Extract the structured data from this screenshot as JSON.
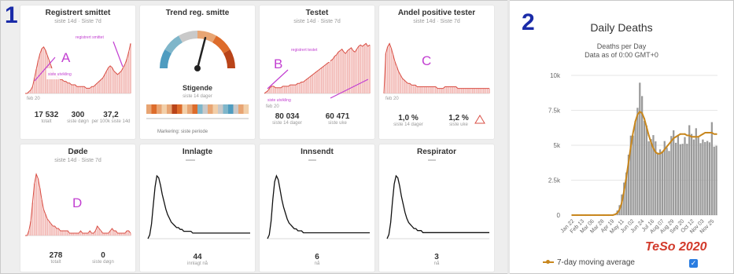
{
  "panels": {
    "one_label": "1",
    "two_label": "2"
  },
  "dashboard": {
    "cards": [
      {
        "title": "Registrert smittet",
        "subtitle": "siste 14d · Siste 7d",
        "letter": "A",
        "annotations": [
          "registrert smittet",
          "siste utvikling"
        ],
        "x_tick_left": "feb 20",
        "x_tick_right": "",
        "stats": [
          {
            "value": "17 532",
            "label": "totalt"
          },
          {
            "value": "300",
            "label": "siste døgn"
          },
          {
            "value": "37,2",
            "label": "per 100k siste 14d"
          }
        ]
      },
      {
        "title": "Trend reg. smitte",
        "gauge_label": "Stigende",
        "gauge_sub": "siste 14 dager",
        "note": "Markering: siste periode"
      },
      {
        "title": "Testet",
        "subtitle": "siste 14d · Siste 7d",
        "letter": "B",
        "annotations": [
          "registrert testet",
          "siste utvikling"
        ],
        "x_tick_left": "feb 20",
        "x_tick_right": "",
        "stats": [
          {
            "value": "80 034",
            "label": "siste 14 dager"
          },
          {
            "value": "60 471",
            "label": "siste uke"
          }
        ]
      },
      {
        "title": "Andel positive tester",
        "subtitle": "siste 14d · Siste 7d",
        "letter": "C",
        "x_tick_left": "feb 20",
        "x_tick_right": "",
        "stats": [
          {
            "value": "1,0 %",
            "label": "siste 14 dager"
          },
          {
            "value": "1,2 %",
            "label": "siste uke"
          }
        ]
      },
      {
        "title": "Døde",
        "subtitle": "siste 14d · Siste 7d",
        "letter": "D",
        "stats": [
          {
            "value": "278",
            "label": "totalt"
          },
          {
            "value": "0",
            "label": "siste døgn"
          }
        ]
      },
      {
        "title": "Innlagte",
        "subtitle": "",
        "stats": [
          {
            "value": "44",
            "label": "innlagt nå"
          }
        ]
      },
      {
        "title": "Innsendt",
        "subtitle": "",
        "stats": [
          {
            "value": "6",
            "label": "nå"
          }
        ]
      },
      {
        "title": "Respirator",
        "subtitle": "",
        "stats": [
          {
            "value": "3",
            "label": "nå"
          }
        ]
      }
    ],
    "colors": {
      "area_fill": "#f2b9b5",
      "area_line": "#d94f45",
      "black_line": "#111111",
      "annotation": "#c23fd1",
      "panel_number": "#1a2ba8"
    }
  },
  "right_chart": {
    "title": "Daily Deaths",
    "subtitle_1": "Deaths per Day",
    "subtitle_2": "Data as of 0:00 GMT+0",
    "legend": "7-day moving average",
    "watermark": "TeSo 2020",
    "y_ticks": [
      "10k",
      "7.5k",
      "5k",
      "2.5k",
      "0"
    ],
    "x_ticks": [
      "Jan 22",
      "Feb 13",
      "Mar 06",
      "Mar 28",
      "Apr 19",
      "May 11",
      "Jun 02",
      "Jun 24",
      "Jul 16",
      "Aug 07",
      "Aug 29",
      "Sep 20",
      "Oct 12",
      "Nov 03",
      "Nov 25"
    ],
    "colors": {
      "bars": "#9a9a9a",
      "average": "#c8871e",
      "checkbox": "#2a7de1",
      "watermark": "#d23a2b"
    }
  },
  "chart_data": [
    {
      "type": "area",
      "title": "Registrert smittet",
      "values": [
        0,
        0,
        1,
        2,
        4,
        9,
        14,
        19,
        23,
        26,
        27,
        25,
        22,
        19,
        16,
        13,
        11,
        10,
        9,
        8,
        8,
        7,
        7,
        6,
        6,
        5,
        5,
        5,
        4,
        4,
        4,
        4,
        4,
        3,
        3,
        3,
        4,
        4,
        5,
        6,
        7,
        8,
        9,
        11,
        13,
        15,
        16,
        15,
        13,
        12,
        11,
        12,
        13,
        15,
        17,
        20,
        24,
        29
      ]
    },
    {
      "type": "gauge",
      "title": "Trend reg. smitte",
      "value": 0.58,
      "scale_colors": [
        "#4f9cc0",
        "#7fb6ca",
        "#c9c9c9",
        "#e8a573",
        "#dd6c2b",
        "#b94419"
      ]
    },
    {
      "type": "area",
      "title": "Testet",
      "values": [
        0,
        1,
        2,
        4,
        5,
        5,
        4,
        4,
        4,
        4,
        5,
        5,
        5,
        5,
        6,
        6,
        6,
        6,
        7,
        7,
        8,
        8,
        9,
        10,
        11,
        12,
        13,
        14,
        15,
        16,
        17,
        18,
        19,
        20,
        21,
        22,
        23,
        24,
        26,
        27,
        29,
        30,
        31,
        29,
        28,
        30,
        31,
        32,
        30,
        29,
        31,
        33,
        34,
        33,
        34,
        35,
        33,
        34
      ]
    },
    {
      "type": "area",
      "title": "Andel positive tester",
      "values": [
        0,
        24,
        28,
        30,
        27,
        23,
        19,
        16,
        13,
        11,
        9,
        8,
        7,
        6,
        6,
        5,
        5,
        5,
        4,
        4,
        4,
        4,
        4,
        4,
        4,
        4,
        4,
        4,
        4,
        3,
        3,
        3,
        3,
        4,
        4,
        4,
        4,
        4,
        4,
        4,
        3,
        3,
        3,
        3,
        3,
        3,
        3,
        3,
        3,
        3,
        3,
        3,
        3,
        3,
        3,
        3,
        3,
        3
      ]
    },
    {
      "type": "area",
      "title": "Døde",
      "values": [
        0,
        0,
        2,
        6,
        14,
        22,
        26,
        24,
        20,
        15,
        11,
        9,
        7,
        6,
        5,
        4,
        4,
        3,
        3,
        2,
        2,
        2,
        2,
        2,
        1,
        1,
        1,
        1,
        1,
        1,
        2,
        1,
        1,
        1,
        1,
        2,
        1,
        1,
        2,
        4,
        3,
        2,
        1,
        1,
        1,
        1,
        2,
        3,
        2,
        2,
        1,
        1,
        1,
        1,
        1,
        2,
        2,
        1
      ]
    },
    {
      "type": "line",
      "title": "Innlagte",
      "values": [
        0,
        2,
        8,
        18,
        28,
        34,
        33,
        29,
        24,
        20,
        16,
        13,
        11,
        9,
        8,
        7,
        6,
        6,
        5,
        5,
        4,
        4,
        4,
        4,
        4,
        3,
        3,
        3,
        3,
        3,
        3,
        3,
        3,
        3,
        3,
        3,
        3,
        3,
        3,
        3,
        3,
        3,
        3,
        3,
        3,
        3,
        3,
        3,
        3,
        3,
        3,
        3,
        3,
        3,
        3,
        3,
        3,
        3
      ]
    },
    {
      "type": "line",
      "title": "Innsendt",
      "values": [
        0,
        2,
        9,
        20,
        29,
        32,
        30,
        25,
        20,
        16,
        13,
        10,
        8,
        7,
        6,
        5,
        5,
        4,
        4,
        4,
        3,
        3,
        3,
        3,
        3,
        3,
        3,
        3,
        3,
        3,
        3,
        3,
        3,
        3,
        3,
        3,
        3,
        3,
        3,
        3,
        3,
        3,
        3,
        3,
        3,
        3,
        3,
        3,
        3,
        3,
        3,
        3,
        3,
        3,
        3,
        3,
        3,
        3
      ]
    },
    {
      "type": "line",
      "title": "Respirator",
      "values": [
        0,
        2,
        8,
        18,
        27,
        31,
        30,
        26,
        21,
        17,
        13,
        10,
        8,
        7,
        6,
        5,
        5,
        4,
        4,
        4,
        3,
        3,
        3,
        3,
        3,
        3,
        3,
        3,
        3,
        3,
        3,
        3,
        3,
        3,
        3,
        3,
        3,
        3,
        3,
        3,
        3,
        3,
        3,
        3,
        3,
        3,
        3,
        3,
        3,
        3,
        3,
        3,
        3,
        3,
        3,
        3,
        3,
        3
      ]
    },
    {
      "type": "bar",
      "title": "Daily Deaths",
      "ylim": [
        0,
        10000
      ],
      "series": [
        {
          "name": "",
          "values": [
            0,
            0,
            0,
            0,
            0,
            0,
            0,
            0,
            0,
            0,
            0,
            0,
            0,
            0,
            0,
            0,
            0,
            0,
            0,
            100,
            300,
            700,
            1400,
            2400,
            3500,
            4600,
            5700,
            6900,
            7600,
            7900,
            8100,
            7900,
            7300,
            6600,
            5900,
            5300,
            4900,
            4600,
            4400,
            4300,
            4400,
            4600,
            4900,
            5100,
            5300,
            5500,
            5600,
            5700,
            5800,
            5900,
            6000,
            5900,
            5800,
            5700,
            5600,
            5500,
            5600,
            5700,
            5800,
            5900,
            6000,
            6100,
            6000,
            5900,
            5800
          ]
        },
        {
          "name": "7-day moving average",
          "values": [
            0,
            0,
            0,
            0,
            0,
            0,
            0,
            0,
            0,
            0,
            0,
            0,
            0,
            0,
            0,
            0,
            0,
            0,
            0,
            50,
            150,
            400,
            900,
            1700,
            2700,
            3800,
            4900,
            5900,
            6700,
            7200,
            7400,
            7300,
            6900,
            6300,
            5700,
            5200,
            4800,
            4500,
            4400,
            4400,
            4500,
            4700,
            4900,
            5100,
            5300,
            5500,
            5600,
            5700,
            5800,
            5800,
            5800,
            5700,
            5700,
            5600,
            5600,
            5600,
            5600,
            5700,
            5800,
            5900,
            5900,
            5900,
            5900,
            5800,
            5800
          ]
        }
      ]
    }
  ]
}
